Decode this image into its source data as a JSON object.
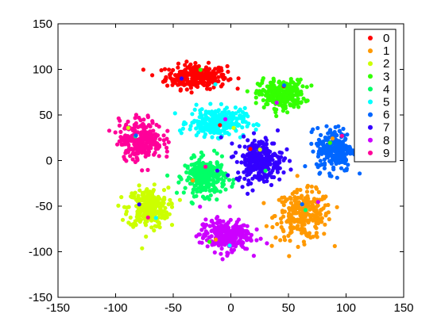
{
  "chart_data": {
    "type": "scatter",
    "title": "",
    "xlabel": "",
    "ylabel": "",
    "xlim": [
      -150,
      150
    ],
    "ylim": [
      -150,
      150
    ],
    "xticks": [
      -150,
      -100,
      -50,
      0,
      50,
      100,
      150
    ],
    "yticks": [
      -150,
      -100,
      -50,
      0,
      50,
      100,
      150
    ],
    "grid": false,
    "legend_position": "top-right",
    "series": [
      {
        "name": "0",
        "color": "#ff0000",
        "center": [
          -30,
          92
        ],
        "spread": [
          24,
          12
        ],
        "count": 260
      },
      {
        "name": "1",
        "color": "#ff9900",
        "center": [
          63,
          -60
        ],
        "spread": [
          22,
          24
        ],
        "count": 260
      },
      {
        "name": "2",
        "color": "#ccff00",
        "center": [
          -72,
          -52
        ],
        "spread": [
          16,
          20
        ],
        "count": 260
      },
      {
        "name": "3",
        "color": "#33ff00",
        "center": [
          44,
          73
        ],
        "spread": [
          18,
          14
        ],
        "count": 260
      },
      {
        "name": "4",
        "color": "#00ff66",
        "center": [
          -22,
          -18
        ],
        "spread": [
          16,
          18
        ],
        "count": 260
      },
      {
        "name": "5",
        "color": "#00ffff",
        "center": [
          -12,
          42
        ],
        "spread": [
          22,
          14
        ],
        "count": 260
      },
      {
        "name": "6",
        "color": "#0066ff",
        "center": [
          90,
          12
        ],
        "spread": [
          14,
          22
        ],
        "count": 240
      },
      {
        "name": "7",
        "color": "#3300ff",
        "center": [
          25,
          0
        ],
        "spread": [
          18,
          22
        ],
        "count": 260
      },
      {
        "name": "8",
        "color": "#cc00ff",
        "center": [
          -5,
          -82
        ],
        "spread": [
          20,
          16
        ],
        "count": 260
      },
      {
        "name": "9",
        "color": "#ff0099",
        "center": [
          -78,
          23
        ],
        "spread": [
          17,
          20
        ],
        "count": 260
      }
    ]
  }
}
